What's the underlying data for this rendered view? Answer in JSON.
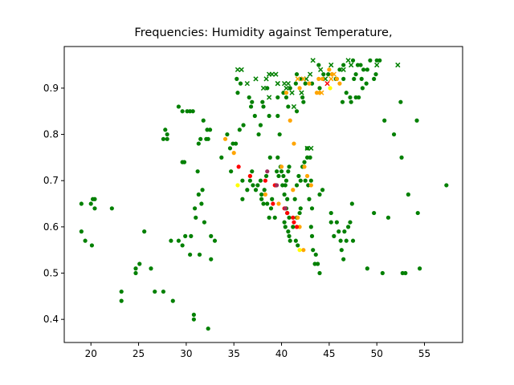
{
  "chart_data": {
    "type": "scatter",
    "title": "Frequencies: Humidity against Temperature,",
    "xlabel": "",
    "ylabel": "",
    "xlim": [
      17.2,
      59.0
    ],
    "ylim": [
      0.35,
      0.99
    ],
    "xticks": [
      20,
      25,
      30,
      35,
      40,
      45,
      50,
      55
    ],
    "yticks": [
      0.4,
      0.5,
      0.6,
      0.7,
      0.8,
      0.9
    ],
    "grid": false,
    "colors": {
      "green": "#008000",
      "orange": "#ffa500",
      "red": "#ff0000",
      "yellow": "#ffff00",
      "purple": "#a02c5a"
    },
    "series": [
      {
        "marker": "o",
        "color": "#008000",
        "points": [
          [
            19.0,
            0.65
          ],
          [
            19.0,
            0.59
          ],
          [
            19.4,
            0.57
          ],
          [
            20.0,
            0.65
          ],
          [
            20.2,
            0.66
          ],
          [
            20.4,
            0.66
          ],
          [
            20.4,
            0.64
          ],
          [
            20.1,
            0.56
          ],
          [
            22.2,
            0.64
          ],
          [
            23.2,
            0.46
          ],
          [
            23.2,
            0.44
          ],
          [
            24.7,
            0.51
          ],
          [
            24.7,
            0.5
          ],
          [
            25.1,
            0.52
          ],
          [
            25.6,
            0.59
          ],
          [
            26.3,
            0.51
          ],
          [
            26.7,
            0.46
          ],
          [
            27.6,
            0.46
          ],
          [
            28.6,
            0.44
          ],
          [
            27.6,
            0.79
          ],
          [
            27.8,
            0.81
          ],
          [
            28.0,
            0.8
          ],
          [
            28.0,
            0.79
          ],
          [
            28.4,
            0.57
          ],
          [
            29.2,
            0.57
          ],
          [
            29.6,
            0.56
          ],
          [
            29.9,
            0.58
          ],
          [
            30.5,
            0.58
          ],
          [
            30.4,
            0.54
          ],
          [
            30.8,
            0.41
          ],
          [
            30.8,
            0.4
          ],
          [
            31.4,
            0.54
          ],
          [
            32.3,
            0.38
          ],
          [
            32.6,
            0.53
          ],
          [
            32.6,
            0.58
          ],
          [
            33.0,
            0.57
          ],
          [
            29.2,
            0.86
          ],
          [
            29.6,
            0.85
          ],
          [
            30.1,
            0.85
          ],
          [
            30.4,
            0.85
          ],
          [
            30.7,
            0.85
          ],
          [
            29.6,
            0.74
          ],
          [
            29.8,
            0.74
          ],
          [
            31.3,
            0.78
          ],
          [
            31.5,
            0.79
          ],
          [
            31.8,
            0.83
          ],
          [
            32.2,
            0.81
          ],
          [
            32.5,
            0.81
          ],
          [
            32.1,
            0.79
          ],
          [
            32.3,
            0.79
          ],
          [
            30.9,
            0.64
          ],
          [
            31.0,
            0.62
          ],
          [
            31.3,
            0.67
          ],
          [
            31.6,
            0.65
          ],
          [
            31.9,
            0.61
          ],
          [
            31.2,
            0.72
          ],
          [
            31.7,
            0.68
          ],
          [
            33.7,
            0.75
          ],
          [
            34.9,
            0.78
          ],
          [
            34.3,
            0.8
          ],
          [
            34.6,
            0.77
          ],
          [
            35.2,
            0.78
          ],
          [
            34.7,
            0.72
          ],
          [
            35.6,
            0.81
          ],
          [
            36.0,
            0.82
          ],
          [
            35.4,
            0.89
          ],
          [
            35.3,
            0.92
          ],
          [
            35.7,
            0.91
          ],
          [
            36.6,
            0.88
          ],
          [
            36.8,
            0.86
          ],
          [
            36.9,
            0.87
          ],
          [
            37.2,
            0.84
          ],
          [
            37.6,
            0.8
          ],
          [
            37.8,
            0.82
          ],
          [
            38.0,
            0.87
          ],
          [
            38.1,
            0.86
          ],
          [
            38.5,
            0.9
          ],
          [
            38.7,
            0.84
          ],
          [
            39.6,
            0.84
          ],
          [
            39.8,
            0.8
          ],
          [
            39.6,
            0.88
          ],
          [
            40.2,
            0.89
          ],
          [
            40.5,
            0.88
          ],
          [
            40.7,
            0.86
          ],
          [
            40.9,
            0.9
          ],
          [
            41.5,
            0.91
          ],
          [
            41.6,
            0.85
          ],
          [
            42.2,
            0.88
          ],
          [
            42.3,
            0.87
          ],
          [
            35.9,
            0.66
          ],
          [
            35.9,
            0.7
          ],
          [
            36.4,
            0.68
          ],
          [
            36.7,
            0.7
          ],
          [
            36.9,
            0.72
          ],
          [
            37.0,
            0.69
          ],
          [
            37.3,
            0.68
          ],
          [
            37.5,
            0.69
          ],
          [
            37.8,
            0.7
          ],
          [
            37.9,
            0.67
          ],
          [
            37.9,
            0.66
          ],
          [
            38.1,
            0.65
          ],
          [
            38.2,
            0.68
          ],
          [
            38.4,
            0.71
          ],
          [
            38.5,
            0.65
          ],
          [
            38.7,
            0.62
          ],
          [
            38.9,
            0.64
          ],
          [
            39.0,
            0.66
          ],
          [
            39.3,
            0.62
          ],
          [
            39.4,
            0.69
          ],
          [
            39.5,
            0.72
          ],
          [
            39.7,
            0.71
          ],
          [
            39.9,
            0.73
          ],
          [
            40.0,
            0.72
          ],
          [
            40.2,
            0.71
          ],
          [
            40.1,
            0.69
          ],
          [
            40.3,
            0.67
          ],
          [
            40.5,
            0.7
          ],
          [
            40.4,
            0.69
          ],
          [
            40.7,
            0.72
          ],
          [
            40.8,
            0.73
          ],
          [
            40.6,
            0.66
          ],
          [
            40.5,
            0.64
          ],
          [
            40.6,
            0.63
          ],
          [
            40.8,
            0.62
          ],
          [
            40.3,
            0.61
          ],
          [
            40.4,
            0.6
          ],
          [
            40.7,
            0.59
          ],
          [
            40.8,
            0.58
          ],
          [
            40.9,
            0.57
          ],
          [
            41.2,
            0.6
          ],
          [
            41.5,
            0.57
          ],
          [
            41.7,
            0.56
          ],
          [
            41.6,
            0.62
          ],
          [
            41.9,
            0.63
          ],
          [
            42.0,
            0.64
          ],
          [
            41.4,
            0.66
          ],
          [
            41.6,
            0.69
          ],
          [
            41.8,
            0.71
          ],
          [
            42.0,
            0.7
          ],
          [
            42.2,
            0.73
          ],
          [
            42.4,
            0.74
          ],
          [
            42.7,
            0.75
          ],
          [
            42.7,
            0.77
          ],
          [
            43.0,
            0.75
          ],
          [
            42.5,
            0.7
          ],
          [
            42.8,
            0.69
          ],
          [
            43.1,
            0.7
          ],
          [
            42.9,
            0.66
          ],
          [
            43.2,
            0.64
          ],
          [
            43.1,
            0.6
          ],
          [
            43.2,
            0.58
          ],
          [
            43.3,
            0.55
          ],
          [
            43.6,
            0.54
          ],
          [
            43.5,
            0.52
          ],
          [
            43.8,
            0.52
          ],
          [
            44.0,
            0.5
          ],
          [
            44.0,
            0.67
          ],
          [
            44.3,
            0.68
          ],
          [
            38.8,
            0.75
          ],
          [
            39.6,
            0.75
          ],
          [
            45.2,
            0.63
          ],
          [
            45.8,
            0.61
          ],
          [
            46.0,
            0.59
          ],
          [
            46.2,
            0.57
          ],
          [
            46.3,
            0.55
          ],
          [
            46.5,
            0.53
          ],
          [
            46.6,
            0.59
          ],
          [
            46.8,
            0.57
          ],
          [
            47.0,
            0.6
          ],
          [
            47.2,
            0.61
          ],
          [
            47.5,
            0.57
          ],
          [
            47.4,
            0.65
          ],
          [
            45.2,
            0.61
          ],
          [
            45.5,
            0.58
          ],
          [
            49.0,
            0.51
          ],
          [
            49.7,
            0.63
          ],
          [
            50.6,
            0.5
          ],
          [
            51.2,
            0.62
          ],
          [
            52.7,
            0.5
          ],
          [
            53.0,
            0.5
          ],
          [
            53.3,
            0.67
          ],
          [
            54.3,
            0.63
          ],
          [
            54.5,
            0.51
          ],
          [
            57.3,
            0.69
          ],
          [
            52.6,
            0.75
          ],
          [
            50.8,
            0.83
          ],
          [
            51.8,
            0.8
          ],
          [
            54.2,
            0.83
          ],
          [
            52.5,
            0.87
          ],
          [
            43.2,
            0.91
          ],
          [
            44.0,
            0.9
          ],
          [
            44.4,
            0.93
          ],
          [
            44.9,
            0.93
          ],
          [
            45.3,
            0.93
          ],
          [
            45.8,
            0.92
          ],
          [
            46.1,
            0.94
          ],
          [
            46.5,
            0.92
          ],
          [
            46.8,
            0.89
          ],
          [
            47.2,
            0.88
          ],
          [
            46.4,
            0.87
          ],
          [
            47.3,
            0.87
          ],
          [
            47.8,
            0.88
          ],
          [
            48.1,
            0.88
          ],
          [
            47.6,
            0.92
          ],
          [
            47.8,
            0.93
          ],
          [
            48.0,
            0.95
          ],
          [
            48.3,
            0.95
          ],
          [
            48.6,
            0.94
          ],
          [
            49.0,
            0.94
          ],
          [
            48.4,
            0.92
          ],
          [
            48.9,
            0.91
          ],
          [
            49.3,
            0.96
          ],
          [
            49.7,
            0.92
          ],
          [
            48.5,
            0.9
          ],
          [
            49.9,
            0.93
          ],
          [
            50.0,
            0.96
          ],
          [
            50.3,
            0.96
          ],
          [
            47.5,
            0.96
          ],
          [
            46.5,
            0.95
          ],
          [
            45.7,
            0.92
          ],
          [
            43.9,
            0.95
          ],
          [
            41.6,
            0.93
          ],
          [
            42.1,
            0.92
          ],
          [
            42.5,
            0.91
          ]
        ]
      },
      {
        "marker": "x",
        "color": "#008000",
        "points": [
          [
            35.4,
            0.94
          ],
          [
            35.8,
            0.94
          ],
          [
            36.4,
            0.91
          ],
          [
            37.3,
            0.92
          ],
          [
            38.1,
            0.9
          ],
          [
            38.4,
            0.92
          ],
          [
            38.7,
            0.93
          ],
          [
            39.4,
            0.93
          ],
          [
            39.0,
            0.93
          ],
          [
            39.6,
            0.91
          ],
          [
            40.3,
            0.91
          ],
          [
            40.7,
            0.91
          ],
          [
            40.5,
            0.9
          ],
          [
            38.7,
            0.88
          ],
          [
            39.6,
            0.91
          ],
          [
            41.3,
            0.86
          ],
          [
            41.1,
            0.89
          ],
          [
            42.1,
            0.89
          ],
          [
            42.6,
            0.92
          ],
          [
            43.0,
            0.93
          ],
          [
            43.3,
            0.96
          ],
          [
            44.1,
            0.94
          ],
          [
            44.6,
            0.92
          ],
          [
            45.2,
            0.95
          ],
          [
            46.5,
            0.94
          ],
          [
            47.0,
            0.96
          ],
          [
            47.3,
            0.95
          ],
          [
            50.0,
            0.95
          ],
          [
            52.2,
            0.95
          ],
          [
            42.7,
            0.77
          ],
          [
            43.1,
            0.77
          ]
        ]
      },
      {
        "marker": "o",
        "color": "#ffa500",
        "points": [
          [
            34.1,
            0.79
          ],
          [
            35.0,
            0.76
          ],
          [
            36.7,
            0.71
          ],
          [
            38.3,
            0.67
          ],
          [
            39.7,
            0.65
          ],
          [
            40.0,
            0.73
          ],
          [
            40.9,
            0.83
          ],
          [
            41.3,
            0.78
          ],
          [
            41.9,
            0.6
          ],
          [
            42.4,
            0.73
          ],
          [
            42.7,
            0.71
          ],
          [
            43.1,
            0.69
          ],
          [
            41.7,
            0.62
          ],
          [
            42.3,
            0.55
          ],
          [
            41.2,
            0.68
          ],
          [
            40.5,
            0.89
          ],
          [
            41.9,
            0.9
          ],
          [
            42.9,
            0.91
          ],
          [
            43.9,
            0.92
          ],
          [
            44.3,
            0.92
          ],
          [
            45.0,
            0.94
          ],
          [
            45.3,
            0.93
          ],
          [
            45.8,
            0.92
          ],
          [
            46.1,
            0.91
          ],
          [
            43.7,
            0.89
          ],
          [
            44.0,
            0.89
          ]
        ]
      },
      {
        "marker": "x",
        "color": "#ffa500",
        "points": [
          [
            41.7,
            0.92
          ],
          [
            42.3,
            0.92
          ],
          [
            44.2,
            0.89
          ],
          [
            45.2,
            0.92
          ],
          [
            45.5,
            0.93
          ]
        ]
      },
      {
        "marker": "o",
        "color": "#ff0000",
        "points": [
          [
            35.5,
            0.73
          ],
          [
            36.7,
            0.71
          ],
          [
            38.3,
            0.7
          ],
          [
            39.1,
            0.65
          ],
          [
            39.3,
            0.69
          ],
          [
            40.6,
            0.63
          ],
          [
            41.3,
            0.61
          ],
          [
            41.6,
            0.6
          ],
          [
            40.3,
            0.64
          ],
          [
            41.2,
            0.62
          ]
        ]
      },
      {
        "marker": "x",
        "color": "#ff0000",
        "points": [
          [
            44.8,
            0.91
          ]
        ]
      },
      {
        "marker": "o",
        "color": "#a02c5a",
        "points": [
          [
            38.5,
            0.72
          ],
          [
            39.5,
            0.69
          ],
          [
            40.4,
            0.64
          ]
        ]
      },
      {
        "marker": "o",
        "color": "#ffff00",
        "points": [
          [
            45.1,
            0.9
          ],
          [
            41.9,
            0.55
          ],
          [
            35.4,
            0.69
          ]
        ]
      }
    ]
  }
}
